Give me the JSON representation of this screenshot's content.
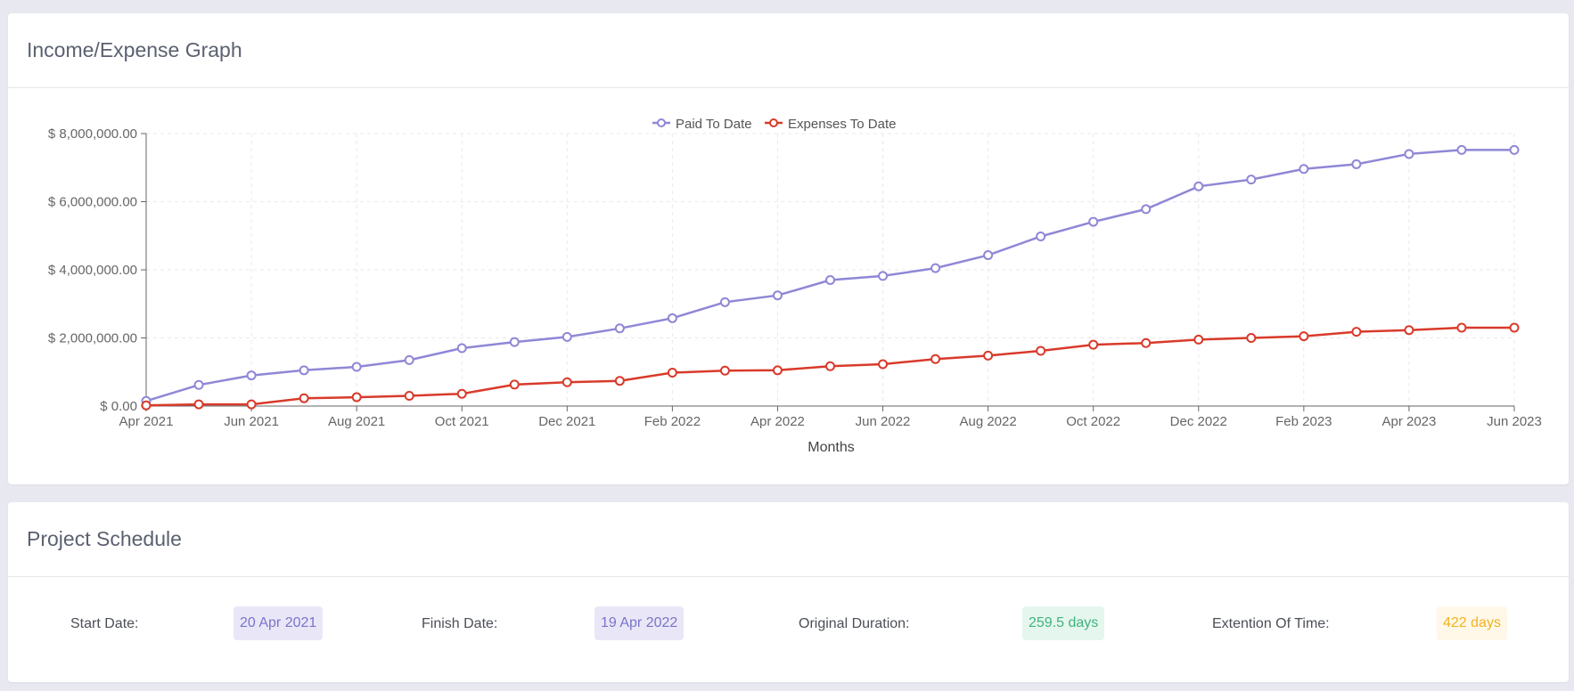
{
  "graph_card": {
    "title": "Income/Expense Graph"
  },
  "schedule_card": {
    "title": "Project Schedule",
    "start_label": "Start Date:",
    "start_value": "20 Apr 2021",
    "finish_label": "Finish Date:",
    "finish_value": "19 Apr 2022",
    "duration_label": "Original Duration:",
    "duration_value": "259.5 days",
    "eot_label": "Extention Of Time:",
    "eot_value": "422 days"
  },
  "colors": {
    "paid": "#8f87d6",
    "expenses": "#d93a2b"
  },
  "chart_data": {
    "type": "line",
    "xlabel": "Months",
    "ylabel": "",
    "ylim": [
      0,
      8000000
    ],
    "yticks": [
      "$ 0.00",
      "$ 2,000,000.00",
      "$ 4,000,000.00",
      "$ 6,000,000.00",
      "$ 8,000,000.00"
    ],
    "xticks": [
      "Apr 2021",
      "Jun 2021",
      "Aug 2021",
      "Oct 2021",
      "Dec 2021",
      "Feb 2022",
      "Apr 2022",
      "Jun 2022",
      "Aug 2022",
      "Oct 2022",
      "Dec 2022",
      "Feb 2023",
      "Apr 2023",
      "Jun 2023"
    ],
    "grid": true,
    "legend": "top-center",
    "x": [
      "Apr 2021",
      "May 2021",
      "Jun 2021",
      "Jul 2021",
      "Aug 2021",
      "Sep 2021",
      "Oct 2021",
      "Nov 2021",
      "Dec 2021",
      "Jan 2022",
      "Feb 2022",
      "Mar 2022",
      "Apr 2022",
      "May 2022",
      "Jun 2022",
      "Jul 2022",
      "Aug 2022",
      "Sep 2022",
      "Oct 2022",
      "Nov 2022",
      "Dec 2022",
      "Jan 2023",
      "Feb 2023",
      "Mar 2023",
      "Apr 2023",
      "May 2023",
      "Jun 2023"
    ],
    "series": [
      {
        "name": "Paid To Date",
        "values": [
          150000,
          620000,
          900000,
          1050000,
          1150000,
          1350000,
          1700000,
          1880000,
          2030000,
          2280000,
          2580000,
          3050000,
          3250000,
          3700000,
          3820000,
          4050000,
          4430000,
          4980000,
          5410000,
          5780000,
          6450000,
          6650000,
          6960000,
          7100000,
          7400000,
          7520000,
          7520000
        ]
      },
      {
        "name": "Expenses To Date",
        "values": [
          20000,
          50000,
          50000,
          230000,
          260000,
          300000,
          360000,
          630000,
          700000,
          740000,
          980000,
          1040000,
          1050000,
          1170000,
          1230000,
          1380000,
          1480000,
          1620000,
          1800000,
          1850000,
          1950000,
          2000000,
          2050000,
          2180000,
          2230000,
          2300000,
          2300000
        ]
      }
    ]
  }
}
